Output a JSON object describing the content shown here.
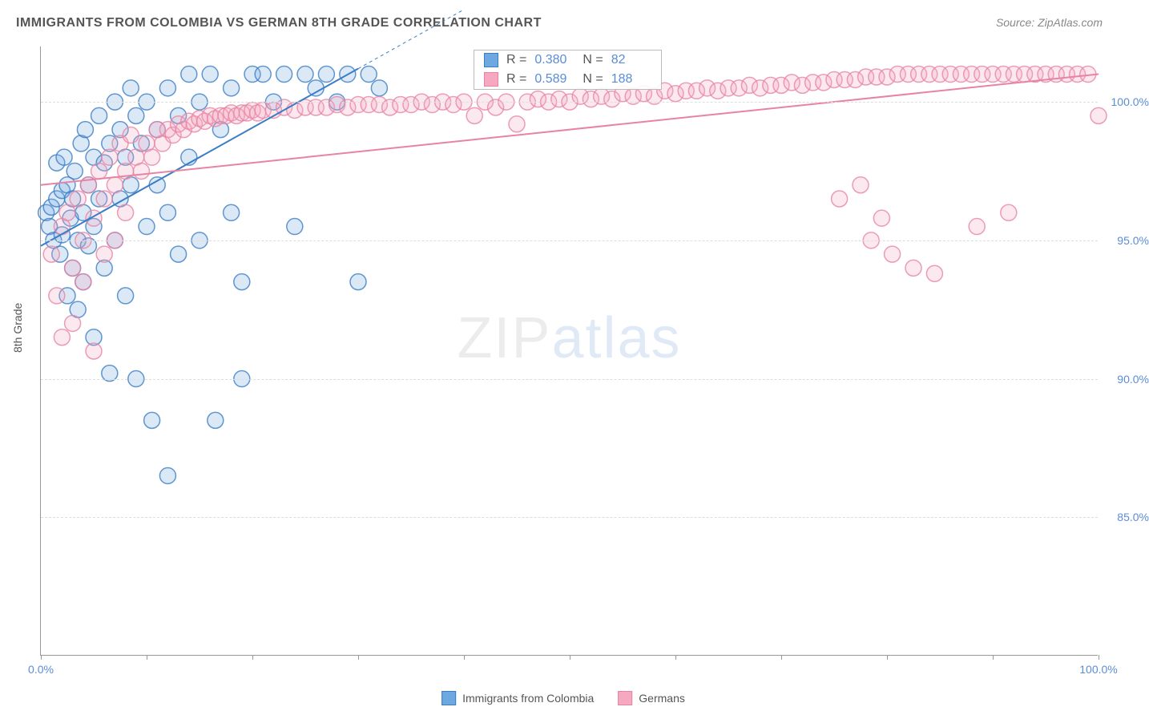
{
  "title": "IMMIGRANTS FROM COLOMBIA VS GERMAN 8TH GRADE CORRELATION CHART",
  "source": "Source: ZipAtlas.com",
  "ylabel": "8th Grade",
  "watermark_bold": "ZIP",
  "watermark_thin": "atlas",
  "chart": {
    "type": "scatter",
    "background_color": "#ffffff",
    "grid_color": "#dddddd",
    "axis_color": "#999999",
    "tick_label_color": "#5b8dd6",
    "xlim": [
      0,
      100
    ],
    "ylim": [
      80,
      102
    ],
    "xticks": [
      0,
      10,
      20,
      30,
      40,
      50,
      60,
      70,
      80,
      90,
      100
    ],
    "xtick_labels": {
      "0": "0.0%",
      "100": "100.0%"
    },
    "yticks": [
      85,
      90,
      95,
      100
    ],
    "ytick_labels": {
      "85": "85.0%",
      "90": "90.0%",
      "95": "95.0%",
      "100": "100.0%"
    },
    "marker_radius": 10,
    "marker_fill_opacity": 0.25,
    "marker_stroke_opacity": 0.8,
    "marker_stroke_width": 1.5,
    "trend_line_width": 2,
    "series": [
      {
        "name": "Immigrants from Colombia",
        "color": "#6ea8e0",
        "stroke": "#3b7dc4",
        "r_value": "0.380",
        "n_value": "82",
        "trend": {
          "x1": 0,
          "y1": 94.8,
          "x2": 30,
          "y2": 101.2,
          "dash_extend_to_x": 40
        },
        "points": [
          [
            0.5,
            96.0
          ],
          [
            0.8,
            95.5
          ],
          [
            1.0,
            96.2
          ],
          [
            1.2,
            95.0
          ],
          [
            1.5,
            96.5
          ],
          [
            1.5,
            97.8
          ],
          [
            1.8,
            94.5
          ],
          [
            2.0,
            96.8
          ],
          [
            2.0,
            95.2
          ],
          [
            2.2,
            98.0
          ],
          [
            2.5,
            97.0
          ],
          [
            2.5,
            93.0
          ],
          [
            2.8,
            95.8
          ],
          [
            3.0,
            94.0
          ],
          [
            3.0,
            96.5
          ],
          [
            3.2,
            97.5
          ],
          [
            3.5,
            95.0
          ],
          [
            3.5,
            92.5
          ],
          [
            3.8,
            98.5
          ],
          [
            4.0,
            96.0
          ],
          [
            4.0,
            93.5
          ],
          [
            4.2,
            99.0
          ],
          [
            4.5,
            97.0
          ],
          [
            4.5,
            94.8
          ],
          [
            5.0,
            98.0
          ],
          [
            5.0,
            95.5
          ],
          [
            5.0,
            91.5
          ],
          [
            5.5,
            99.5
          ],
          [
            5.5,
            96.5
          ],
          [
            6.0,
            97.8
          ],
          [
            6.0,
            94.0
          ],
          [
            6.5,
            98.5
          ],
          [
            6.5,
            90.2
          ],
          [
            7.0,
            100.0
          ],
          [
            7.0,
            95.0
          ],
          [
            7.5,
            99.0
          ],
          [
            7.5,
            96.5
          ],
          [
            8.0,
            98.0
          ],
          [
            8.0,
            93.0
          ],
          [
            8.5,
            100.5
          ],
          [
            8.5,
            97.0
          ],
          [
            9.0,
            99.5
          ],
          [
            9.0,
            90.0
          ],
          [
            9.5,
            98.5
          ],
          [
            10.0,
            100.0
          ],
          [
            10.0,
            95.5
          ],
          [
            10.5,
            88.5
          ],
          [
            11.0,
            99.0
          ],
          [
            11.0,
            97.0
          ],
          [
            12.0,
            100.5
          ],
          [
            12.0,
            96.0
          ],
          [
            12.0,
            86.5
          ],
          [
            13.0,
            99.5
          ],
          [
            13.0,
            94.5
          ],
          [
            14.0,
            101.0
          ],
          [
            14.0,
            98.0
          ],
          [
            15.0,
            100.0
          ],
          [
            15.0,
            95.0
          ],
          [
            16.0,
            101.0
          ],
          [
            16.5,
            88.5
          ],
          [
            17.0,
            99.0
          ],
          [
            18.0,
            100.5
          ],
          [
            18.0,
            96.0
          ],
          [
            19.0,
            93.5
          ],
          [
            19.0,
            90.0
          ],
          [
            20.0,
            101.0
          ],
          [
            21.0,
            101.0
          ],
          [
            22.0,
            100.0
          ],
          [
            23.0,
            101.0
          ],
          [
            24.0,
            95.5
          ],
          [
            25.0,
            101.0
          ],
          [
            26.0,
            100.5
          ],
          [
            27.0,
            101.0
          ],
          [
            28.0,
            100.0
          ],
          [
            29.0,
            101.0
          ],
          [
            30.0,
            93.5
          ],
          [
            31.0,
            101.0
          ],
          [
            32.0,
            100.5
          ]
        ]
      },
      {
        "name": "Germans",
        "color": "#f5a8c0",
        "stroke": "#e784a4",
        "r_value": "0.589",
        "n_value": "188",
        "trend": {
          "x1": 0,
          "y1": 97.0,
          "x2": 100,
          "y2": 101.0
        },
        "points": [
          [
            1.0,
            94.5
          ],
          [
            1.5,
            93.0
          ],
          [
            2.0,
            95.5
          ],
          [
            2.0,
            91.5
          ],
          [
            2.5,
            96.0
          ],
          [
            3.0,
            94.0
          ],
          [
            3.0,
            92.0
          ],
          [
            3.5,
            96.5
          ],
          [
            4.0,
            95.0
          ],
          [
            4.0,
            93.5
          ],
          [
            4.5,
            97.0
          ],
          [
            5.0,
            95.8
          ],
          [
            5.0,
            91.0
          ],
          [
            5.5,
            97.5
          ],
          [
            6.0,
            96.5
          ],
          [
            6.0,
            94.5
          ],
          [
            6.5,
            98.0
          ],
          [
            7.0,
            97.0
          ],
          [
            7.0,
            95.0
          ],
          [
            7.5,
            98.5
          ],
          [
            8.0,
            97.5
          ],
          [
            8.0,
            96.0
          ],
          [
            8.5,
            98.8
          ],
          [
            9.0,
            98.0
          ],
          [
            9.5,
            97.5
          ],
          [
            10.0,
            98.5
          ],
          [
            10.5,
            98.0
          ],
          [
            11.0,
            99.0
          ],
          [
            11.5,
            98.5
          ],
          [
            12.0,
            99.0
          ],
          [
            12.5,
            98.8
          ],
          [
            13.0,
            99.2
          ],
          [
            13.5,
            99.0
          ],
          [
            14.0,
            99.3
          ],
          [
            14.5,
            99.2
          ],
          [
            15.0,
            99.4
          ],
          [
            15.5,
            99.3
          ],
          [
            16.0,
            99.5
          ],
          [
            16.5,
            99.4
          ],
          [
            17.0,
            99.5
          ],
          [
            17.5,
            99.5
          ],
          [
            18.0,
            99.6
          ],
          [
            18.5,
            99.5
          ],
          [
            19.0,
            99.6
          ],
          [
            19.5,
            99.6
          ],
          [
            20.0,
            99.7
          ],
          [
            20.5,
            99.6
          ],
          [
            21.0,
            99.7
          ],
          [
            22.0,
            99.7
          ],
          [
            23.0,
            99.8
          ],
          [
            24.0,
            99.7
          ],
          [
            25.0,
            99.8
          ],
          [
            26.0,
            99.8
          ],
          [
            27.0,
            99.8
          ],
          [
            28.0,
            99.9
          ],
          [
            29.0,
            99.8
          ],
          [
            30.0,
            99.9
          ],
          [
            31.0,
            99.9
          ],
          [
            32.0,
            99.9
          ],
          [
            33.0,
            99.8
          ],
          [
            34.0,
            99.9
          ],
          [
            35.0,
            99.9
          ],
          [
            36.0,
            100.0
          ],
          [
            37.0,
            99.9
          ],
          [
            38.0,
            100.0
          ],
          [
            39.0,
            99.9
          ],
          [
            40.0,
            100.0
          ],
          [
            41.0,
            99.5
          ],
          [
            42.0,
            100.0
          ],
          [
            43.0,
            99.8
          ],
          [
            44.0,
            100.0
          ],
          [
            45.0,
            99.2
          ],
          [
            46.0,
            100.0
          ],
          [
            47.0,
            100.1
          ],
          [
            48.0,
            100.0
          ],
          [
            49.0,
            100.1
          ],
          [
            50.0,
            100.0
          ],
          [
            51.0,
            100.2
          ],
          [
            52.0,
            100.1
          ],
          [
            53.0,
            100.2
          ],
          [
            54.0,
            100.1
          ],
          [
            55.0,
            100.3
          ],
          [
            56.0,
            100.2
          ],
          [
            57.0,
            100.3
          ],
          [
            58.0,
            100.2
          ],
          [
            59.0,
            100.4
          ],
          [
            60.0,
            100.3
          ],
          [
            61.0,
            100.4
          ],
          [
            62.0,
            100.4
          ],
          [
            63.0,
            100.5
          ],
          [
            64.0,
            100.4
          ],
          [
            65.0,
            100.5
          ],
          [
            66.0,
            100.5
          ],
          [
            67.0,
            100.6
          ],
          [
            68.0,
            100.5
          ],
          [
            69.0,
            100.6
          ],
          [
            70.0,
            100.6
          ],
          [
            71.0,
            100.7
          ],
          [
            72.0,
            100.6
          ],
          [
            73.0,
            100.7
          ],
          [
            74.0,
            100.7
          ],
          [
            75.0,
            100.8
          ],
          [
            75.5,
            96.5
          ],
          [
            76.0,
            100.8
          ],
          [
            77.0,
            100.8
          ],
          [
            77.5,
            97.0
          ],
          [
            78.0,
            100.9
          ],
          [
            78.5,
            95.0
          ],
          [
            79.0,
            100.9
          ],
          [
            79.5,
            95.8
          ],
          [
            80.0,
            100.9
          ],
          [
            80.5,
            94.5
          ],
          [
            81.0,
            101.0
          ],
          [
            82.0,
            101.0
          ],
          [
            82.5,
            94.0
          ],
          [
            83.0,
            101.0
          ],
          [
            84.0,
            101.0
          ],
          [
            84.5,
            93.8
          ],
          [
            85.0,
            101.0
          ],
          [
            86.0,
            101.0
          ],
          [
            87.0,
            101.0
          ],
          [
            88.0,
            101.0
          ],
          [
            88.5,
            95.5
          ],
          [
            89.0,
            101.0
          ],
          [
            90.0,
            101.0
          ],
          [
            91.0,
            101.0
          ],
          [
            91.5,
            96.0
          ],
          [
            92.0,
            101.0
          ],
          [
            93.0,
            101.0
          ],
          [
            94.0,
            101.0
          ],
          [
            95.0,
            101.0
          ],
          [
            96.0,
            101.0
          ],
          [
            97.0,
            101.0
          ],
          [
            98.0,
            101.0
          ],
          [
            99.0,
            101.0
          ],
          [
            100.0,
            99.5
          ]
        ]
      }
    ]
  },
  "legend": {
    "series1_label": "Immigrants from Colombia",
    "series2_label": "Germans"
  },
  "stat_labels": {
    "r": "R =",
    "n": "N ="
  }
}
